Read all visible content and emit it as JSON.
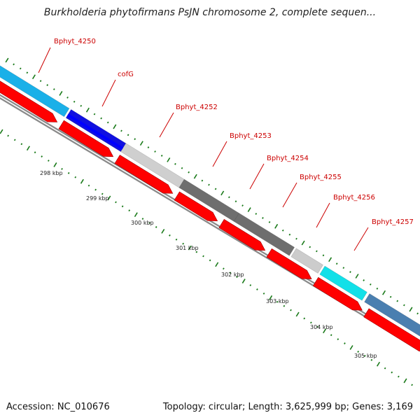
{
  "title": "Burkholderia phytofirmans PsJN chromosome 2, complete sequen...",
  "footer": {
    "accession": "Accession: NC_010676",
    "summary": "Topology: circular; Length: 3,625,999 bp; Genes: 3,169"
  },
  "colors": {
    "gene_label": "#cc0000",
    "tick": "#1a7a1a",
    "cds_forward": "#ff0000",
    "backbone": "#8a8a8a"
  },
  "scale_labels": [
    "298 kbp",
    "299 kbp",
    "300 kbp",
    "301 kbp",
    "302 kbp",
    "303 kbp",
    "304 kbp",
    "305 kbp"
  ],
  "genes": [
    {
      "name": "Bphyt_4250",
      "color": "#1ab0e8"
    },
    {
      "name": "cofG",
      "color": "#1010e0"
    },
    {
      "name": "Bphyt_4252",
      "color": "#cfcfcf"
    },
    {
      "name": "Bphyt_4253",
      "color": "#6e6e6e"
    },
    {
      "name": "Bphyt_4254",
      "color": "#6e6e6e"
    },
    {
      "name": "Bphyt_4255",
      "color": "#cccccc"
    },
    {
      "name": "Bphyt_4256",
      "color": "#12e0e8"
    },
    {
      "name": "Bphyt_4257",
      "color": "#4a7fb0"
    }
  ]
}
